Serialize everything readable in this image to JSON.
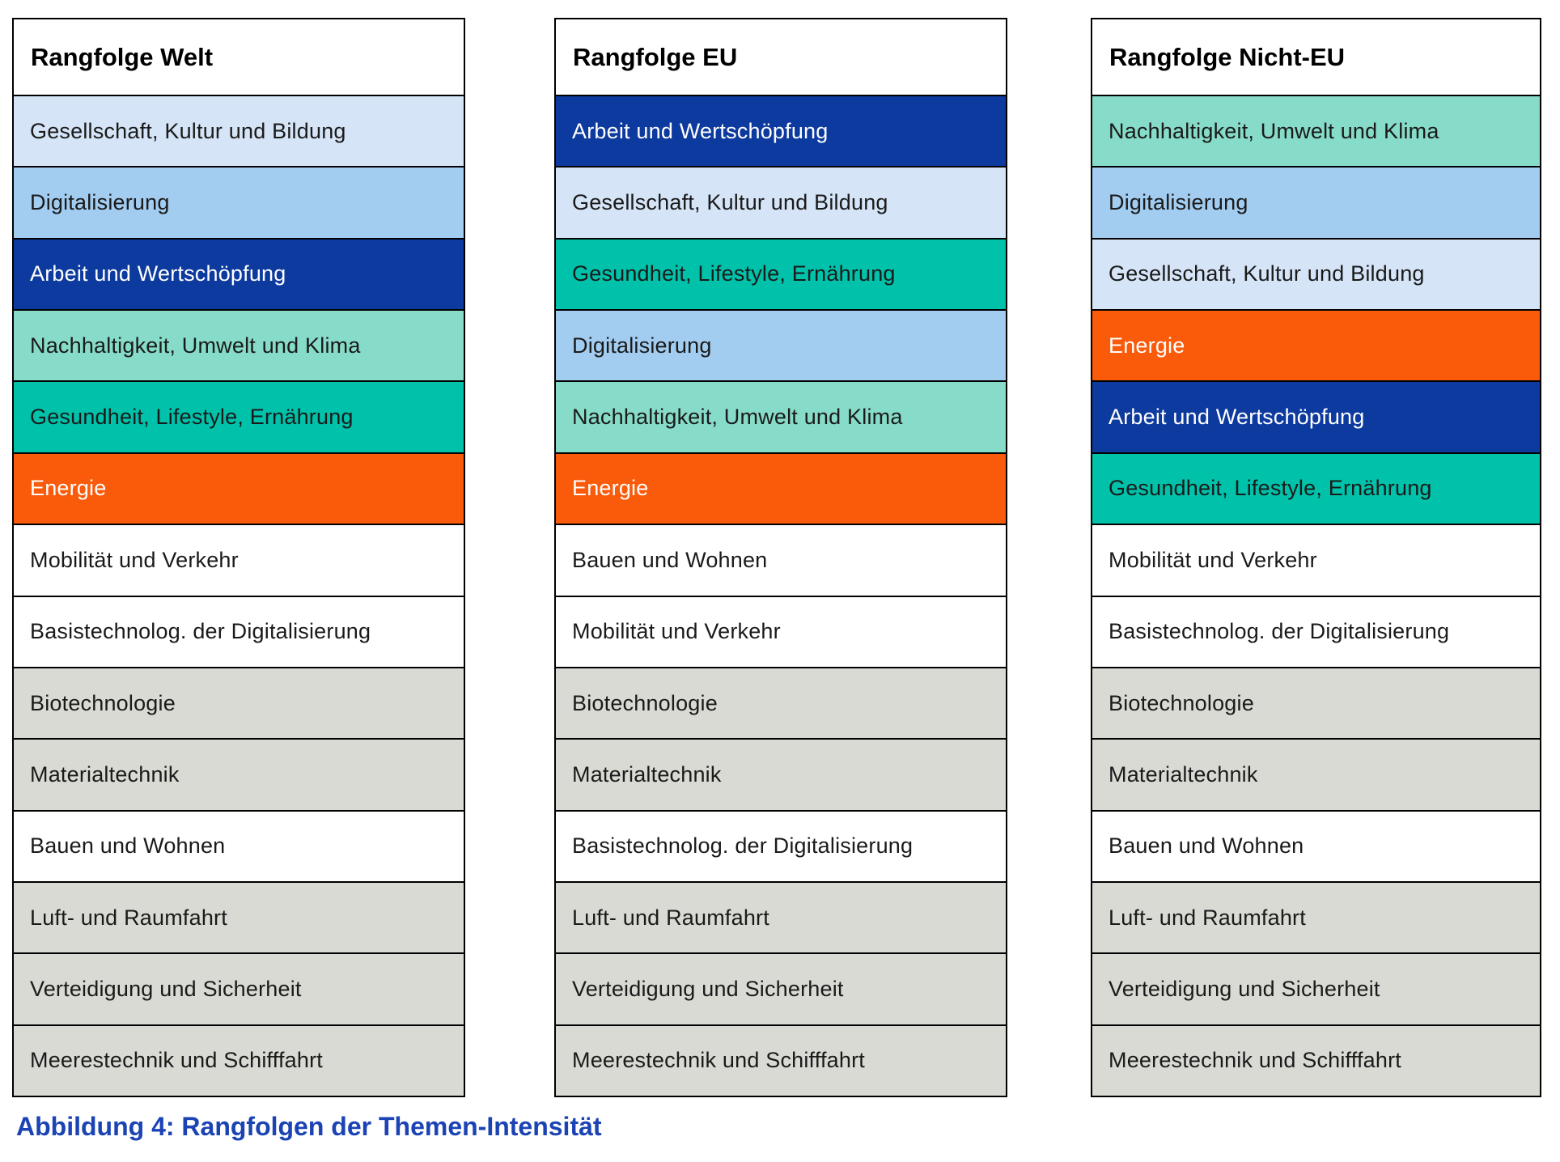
{
  "caption": {
    "text": "Abbildung 4: Rangfolgen der Themen-Intensität",
    "color": "#1b43b4"
  },
  "palette": {
    "light_blue": "#d5e4f7",
    "mid_blue": "#a2ccf0",
    "dark_blue": "#0d3a9e",
    "mint": "#86dcc9",
    "teal": "#00c1a9",
    "orange": "#f95b0a",
    "white": "#ffffff",
    "gray": "#d9dad4",
    "text_dark": "#1a1a1a",
    "text_light": "#ffffff",
    "border": "#000000"
  },
  "tables": [
    {
      "title": "Rangfolge Welt",
      "rows": [
        {
          "label": "Gesellschaft, Kultur und Bildung",
          "bg": "#d5e4f7",
          "fg": "#1a1a1a"
        },
        {
          "label": "Digitalisierung",
          "bg": "#a2ccf0",
          "fg": "#1a1a1a"
        },
        {
          "label": "Arbeit und Wertschöpfung",
          "bg": "#0d3a9e",
          "fg": "#ffffff"
        },
        {
          "label": "Nachhaltigkeit, Umwelt und Klima",
          "bg": "#86dcc9",
          "fg": "#1a1a1a"
        },
        {
          "label": "Gesundheit, Lifestyle, Ernährung",
          "bg": "#00c1a9",
          "fg": "#1a1a1a"
        },
        {
          "label": "Energie",
          "bg": "#f95b0a",
          "fg": "#ffffff"
        },
        {
          "label": "Mobilität und Verkehr",
          "bg": "#ffffff",
          "fg": "#1a1a1a"
        },
        {
          "label": "Basistechnolog. der Digitalisierung",
          "bg": "#ffffff",
          "fg": "#1a1a1a"
        },
        {
          "label": "Biotechnologie",
          "bg": "#d9dad4",
          "fg": "#1a1a1a"
        },
        {
          "label": "Materialtechnik",
          "bg": "#d9dad4",
          "fg": "#1a1a1a"
        },
        {
          "label": "Bauen und Wohnen",
          "bg": "#ffffff",
          "fg": "#1a1a1a"
        },
        {
          "label": "Luft- und Raumfahrt",
          "bg": "#d9dad4",
          "fg": "#1a1a1a"
        },
        {
          "label": "Verteidigung und Sicherheit",
          "bg": "#d9dad4",
          "fg": "#1a1a1a"
        },
        {
          "label": "Meerestechnik und Schifffahrt",
          "bg": "#d9dad4",
          "fg": "#1a1a1a"
        }
      ]
    },
    {
      "title": "Rangfolge EU",
      "rows": [
        {
          "label": "Arbeit und Wertschöpfung",
          "bg": "#0d3a9e",
          "fg": "#ffffff"
        },
        {
          "label": "Gesellschaft, Kultur und Bildung",
          "bg": "#d5e4f7",
          "fg": "#1a1a1a"
        },
        {
          "label": "Gesundheit, Lifestyle, Ernährung",
          "bg": "#00c1a9",
          "fg": "#1a1a1a"
        },
        {
          "label": "Digitalisierung",
          "bg": "#a2ccf0",
          "fg": "#1a1a1a"
        },
        {
          "label": "Nachhaltigkeit, Umwelt und Klima",
          "bg": "#86dcc9",
          "fg": "#1a1a1a"
        },
        {
          "label": "Energie",
          "bg": "#f95b0a",
          "fg": "#ffffff"
        },
        {
          "label": "Bauen und Wohnen",
          "bg": "#ffffff",
          "fg": "#1a1a1a"
        },
        {
          "label": "Mobilität und Verkehr",
          "bg": "#ffffff",
          "fg": "#1a1a1a"
        },
        {
          "label": "Biotechnologie",
          "bg": "#d9dad4",
          "fg": "#1a1a1a"
        },
        {
          "label": "Materialtechnik",
          "bg": "#d9dad4",
          "fg": "#1a1a1a"
        },
        {
          "label": "Basistechnolog. der Digitalisierung",
          "bg": "#ffffff",
          "fg": "#1a1a1a"
        },
        {
          "label": "Luft- und Raumfahrt",
          "bg": "#d9dad4",
          "fg": "#1a1a1a"
        },
        {
          "label": "Verteidigung und Sicherheit",
          "bg": "#d9dad4",
          "fg": "#1a1a1a"
        },
        {
          "label": "Meerestechnik und Schifffahrt",
          "bg": "#d9dad4",
          "fg": "#1a1a1a"
        }
      ]
    },
    {
      "title": "Rangfolge Nicht-EU",
      "rows": [
        {
          "label": "Nachhaltigkeit, Umwelt und Klima",
          "bg": "#86dcc9",
          "fg": "#1a1a1a"
        },
        {
          "label": "Digitalisierung",
          "bg": "#a2ccf0",
          "fg": "#1a1a1a"
        },
        {
          "label": "Gesellschaft, Kultur und Bildung",
          "bg": "#d5e4f7",
          "fg": "#1a1a1a"
        },
        {
          "label": "Energie",
          "bg": "#f95b0a",
          "fg": "#ffffff"
        },
        {
          "label": "Arbeit und Wertschöpfung",
          "bg": "#0d3a9e",
          "fg": "#ffffff"
        },
        {
          "label": "Gesundheit, Lifestyle, Ernährung",
          "bg": "#00c1a9",
          "fg": "#1a1a1a"
        },
        {
          "label": "Mobilität und Verkehr",
          "bg": "#ffffff",
          "fg": "#1a1a1a"
        },
        {
          "label": "Basistechnolog. der Digitalisierung",
          "bg": "#ffffff",
          "fg": "#1a1a1a"
        },
        {
          "label": "Biotechnologie",
          "bg": "#d9dad4",
          "fg": "#1a1a1a"
        },
        {
          "label": "Materialtechnik",
          "bg": "#d9dad4",
          "fg": "#1a1a1a"
        },
        {
          "label": "Bauen und Wohnen",
          "bg": "#ffffff",
          "fg": "#1a1a1a"
        },
        {
          "label": "Luft- und Raumfahrt",
          "bg": "#d9dad4",
          "fg": "#1a1a1a"
        },
        {
          "label": "Verteidigung und Sicherheit",
          "bg": "#d9dad4",
          "fg": "#1a1a1a"
        },
        {
          "label": "Meerestechnik und Schifffahrt",
          "bg": "#d9dad4",
          "fg": "#1a1a1a"
        }
      ]
    }
  ],
  "chart_data": {
    "type": "table",
    "title": "Abbildung 4: Rangfolgen der Themen-Intensität",
    "columns": [
      "Rangfolge Welt",
      "Rangfolge EU",
      "Rangfolge Nicht-EU"
    ],
    "rankings": {
      "Rangfolge Welt": [
        "Gesellschaft, Kultur und Bildung",
        "Digitalisierung",
        "Arbeit und Wertschöpfung",
        "Nachhaltigkeit, Umwelt und Klima",
        "Gesundheit, Lifestyle, Ernährung",
        "Energie",
        "Mobilität und Verkehr",
        "Basistechnolog. der Digitalisierung",
        "Biotechnologie",
        "Materialtechnik",
        "Bauen und Wohnen",
        "Luft- und Raumfahrt",
        "Verteidigung und Sicherheit",
        "Meerestechnik und Schifffahrt"
      ],
      "Rangfolge EU": [
        "Arbeit und Wertschöpfung",
        "Gesellschaft, Kultur und Bildung",
        "Gesundheit, Lifestyle, Ernährung",
        "Digitalisierung",
        "Nachhaltigkeit, Umwelt und Klima",
        "Energie",
        "Bauen und Wohnen",
        "Mobilität und Verkehr",
        "Biotechnologie",
        "Materialtechnik",
        "Basistechnolog. der Digitalisierung",
        "Luft- und Raumfahrt",
        "Verteidigung und Sicherheit",
        "Meerestechnik und Schifffahrt"
      ],
      "Rangfolge Nicht-EU": [
        "Nachhaltigkeit, Umwelt und Klima",
        "Digitalisierung",
        "Gesellschaft, Kultur und Bildung",
        "Energie",
        "Arbeit und Wertschöpfung",
        "Gesundheit, Lifestyle, Ernährung",
        "Mobilität und Verkehr",
        "Basistechnolog. der Digitalisierung",
        "Biotechnologie",
        "Materialtechnik",
        "Bauen und Wohnen",
        "Luft- und Raumfahrt",
        "Verteidigung und Sicherheit",
        "Meerestechnik und Schifffahrt"
      ]
    },
    "theme_colors": {
      "Gesellschaft, Kultur und Bildung": "#d5e4f7",
      "Digitalisierung": "#a2ccf0",
      "Arbeit und Wertschöpfung": "#0d3a9e",
      "Nachhaltigkeit, Umwelt und Klima": "#86dcc9",
      "Gesundheit, Lifestyle, Ernährung": "#00c1a9",
      "Energie": "#f95b0a",
      "Mobilität und Verkehr": "#ffffff",
      "Basistechnolog. der Digitalisierung": "#ffffff",
      "Bauen und Wohnen": "#ffffff",
      "Biotechnologie": "#d9dad4",
      "Materialtechnik": "#d9dad4",
      "Luft- und Raumfahrt": "#d9dad4",
      "Verteidigung und Sicherheit": "#d9dad4",
      "Meerestechnik und Schifffahrt": "#d9dad4"
    }
  }
}
